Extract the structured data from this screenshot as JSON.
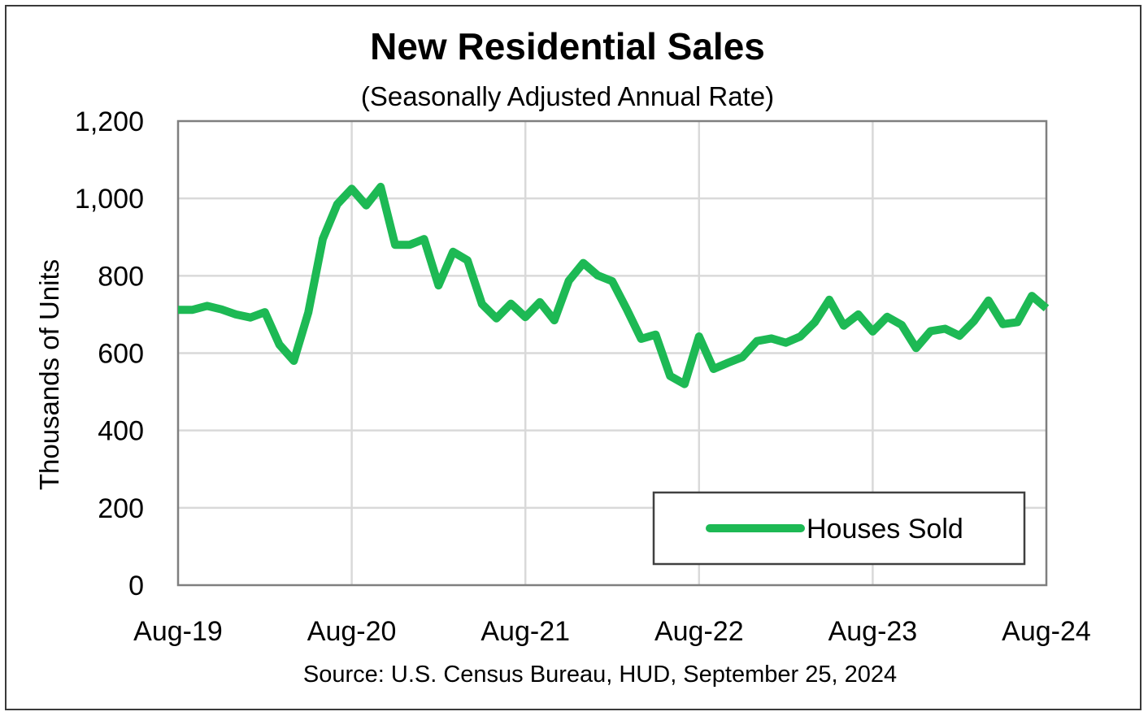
{
  "chart_data": {
    "type": "line",
    "title": "New Residential Sales",
    "subtitle": "(Seasonally Adjusted Annual Rate)",
    "ylabel": "Thousands of Units",
    "xlabel": "",
    "ylim": [
      0,
      1200
    ],
    "yticks": [
      0,
      200,
      400,
      600,
      800,
      1000,
      1200
    ],
    "ytick_labels": [
      "0",
      "200",
      "400",
      "600",
      "800",
      "1,000",
      "1,200"
    ],
    "xlim": [
      "2019-08",
      "2024-08"
    ],
    "xticks": [
      "2019-08",
      "2020-08",
      "2021-08",
      "2022-08",
      "2023-08",
      "2024-08"
    ],
    "xtick_labels": [
      "Aug-19",
      "Aug-20",
      "Aug-21",
      "Aug-22",
      "Aug-23",
      "Aug-24"
    ],
    "grid": true,
    "legend_position": "bottom-right",
    "source": "Source:  U.S. Census Bureau, HUD, September 25, 2024",
    "series": [
      {
        "name": "Houses Sold",
        "color": "#1db954",
        "x": [
          "2019-08",
          "2019-09",
          "2019-10",
          "2019-11",
          "2019-12",
          "2020-01",
          "2020-02",
          "2020-03",
          "2020-04",
          "2020-05",
          "2020-06",
          "2020-07",
          "2020-08",
          "2020-09",
          "2020-10",
          "2020-11",
          "2020-12",
          "2021-01",
          "2021-02",
          "2021-03",
          "2021-04",
          "2021-05",
          "2021-06",
          "2021-07",
          "2021-08",
          "2021-09",
          "2021-10",
          "2021-11",
          "2021-12",
          "2022-01",
          "2022-02",
          "2022-03",
          "2022-04",
          "2022-05",
          "2022-06",
          "2022-07",
          "2022-08",
          "2022-09",
          "2022-10",
          "2022-11",
          "2022-12",
          "2023-01",
          "2023-02",
          "2023-03",
          "2023-04",
          "2023-05",
          "2023-06",
          "2023-07",
          "2023-08",
          "2023-09",
          "2023-10",
          "2023-11",
          "2023-12",
          "2024-01",
          "2024-02",
          "2024-03",
          "2024-04",
          "2024-05",
          "2024-06",
          "2024-07",
          "2024-08"
        ],
        "values": [
          712,
          712,
          722,
          713,
          700,
          692,
          706,
          622,
          580,
          705,
          895,
          985,
          1025,
          982,
          1030,
          880,
          880,
          895,
          775,
          862,
          840,
          727,
          690,
          728,
          693,
          732,
          685,
          787,
          833,
          801,
          786,
          714,
          637,
          648,
          541,
          520,
          643,
          559,
          575,
          590,
          631,
          638,
          627,
          643,
          680,
          738,
          671,
          700,
          656,
          694,
          673,
          613,
          657,
          663,
          645,
          683,
          736,
          675,
          680,
          748,
          716
        ]
      }
    ]
  }
}
